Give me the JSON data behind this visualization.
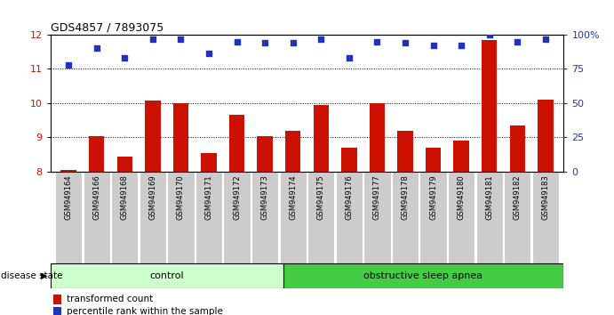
{
  "title": "GDS4857 / 7893075",
  "samples": [
    "GSM949164",
    "GSM949166",
    "GSM949168",
    "GSM949169",
    "GSM949170",
    "GSM949171",
    "GSM949172",
    "GSM949173",
    "GSM949174",
    "GSM949175",
    "GSM949176",
    "GSM949177",
    "GSM949178",
    "GSM949179",
    "GSM949180",
    "GSM949181",
    "GSM949182",
    "GSM949183"
  ],
  "red_values": [
    8.05,
    9.05,
    8.45,
    10.08,
    10.0,
    8.55,
    9.65,
    9.05,
    9.2,
    9.95,
    8.7,
    10.0,
    9.2,
    8.7,
    8.9,
    11.85,
    9.35,
    10.1
  ],
  "blue_pct": [
    78,
    90,
    83,
    97,
    97,
    86,
    95,
    94,
    94,
    97,
    83,
    95,
    94,
    92,
    92,
    100,
    95,
    97
  ],
  "ylim_left": [
    8,
    12
  ],
  "ylim_right": [
    0,
    100
  ],
  "yticks_left": [
    8,
    9,
    10,
    11,
    12
  ],
  "yticks_right": [
    0,
    25,
    50,
    75,
    100
  ],
  "ytick_labels_right": [
    "0",
    "25",
    "50",
    "75",
    "100%"
  ],
  "control_count": 8,
  "control_label": "control",
  "apnea_label": "obstructive sleep apnea",
  "disease_state_label": "disease state",
  "legend_red": "transformed count",
  "legend_blue": "percentile rank within the sample",
  "bar_color": "#cc1100",
  "dot_color": "#2233bb",
  "control_bg": "#ccffcc",
  "apnea_bg": "#44cc44",
  "sample_bg": "#cccccc",
  "bar_baseline": 8.0,
  "figsize": [
    6.91,
    3.54
  ],
  "dpi": 100
}
